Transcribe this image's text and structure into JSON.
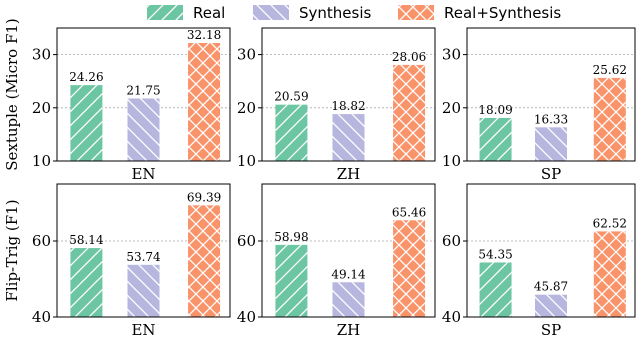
{
  "legend": [
    "Real",
    "Synthesis",
    "Real+Synthesis"
  ],
  "colors": {
    "real": "#6DC6A3",
    "synthesis": "#B6B6DF",
    "realsynth": "#F9936A"
  },
  "chart_data": [
    {
      "type": "bar",
      "row": 0,
      "categories": [
        "Real",
        "Synthesis",
        "Real+Synthesis"
      ],
      "values": [
        24.26,
        21.75,
        32.18
      ],
      "labels": [
        "24.26",
        "21.75",
        "32.18"
      ],
      "xlabel": "EN",
      "ylabel": "Sextuple (Micro F1)",
      "ylim": [
        10,
        35
      ],
      "yticks": [
        10,
        20,
        30
      ],
      "grid": "dashed horizontal at ticks"
    },
    {
      "type": "bar",
      "row": 0,
      "categories": [
        "Real",
        "Synthesis",
        "Real+Synthesis"
      ],
      "values": [
        20.59,
        18.82,
        28.06
      ],
      "labels": [
        "20.59",
        "18.82",
        "28.06"
      ],
      "xlabel": "ZH",
      "ylabel": "",
      "ylim": [
        10,
        35
      ],
      "yticks": [
        10,
        20,
        30
      ],
      "grid": "dashed horizontal at ticks"
    },
    {
      "type": "bar",
      "row": 0,
      "categories": [
        "Real",
        "Synthesis",
        "Real+Synthesis"
      ],
      "values": [
        18.09,
        16.33,
        25.62
      ],
      "labels": [
        "18.09",
        "16.33",
        "25.62"
      ],
      "xlabel": "SP",
      "ylabel": "",
      "ylim": [
        10,
        35
      ],
      "yticks": [
        10,
        20,
        30
      ],
      "grid": "dashed horizontal at ticks"
    },
    {
      "type": "bar",
      "row": 1,
      "categories": [
        "Real",
        "Synthesis",
        "Real+Synthesis"
      ],
      "values": [
        58.14,
        53.74,
        69.39
      ],
      "labels": [
        "58.14",
        "53.74",
        "69.39"
      ],
      "xlabel": "EN",
      "ylabel": "Flip-Trig (F1)",
      "ylim": [
        40,
        75
      ],
      "yticks": [
        40,
        60
      ],
      "grid": "dashed horizontal at ticks"
    },
    {
      "type": "bar",
      "row": 1,
      "categories": [
        "Real",
        "Synthesis",
        "Real+Synthesis"
      ],
      "values": [
        58.98,
        49.14,
        65.46
      ],
      "labels": [
        "58.98",
        "49.14",
        "65.46"
      ],
      "xlabel": "ZH",
      "ylabel": "",
      "ylim": [
        40,
        75
      ],
      "yticks": [
        40,
        60
      ],
      "grid": "dashed horizontal at ticks"
    },
    {
      "type": "bar",
      "row": 1,
      "categories": [
        "Real",
        "Synthesis",
        "Real+Synthesis"
      ],
      "values": [
        54.35,
        45.87,
        62.52
      ],
      "labels": [
        "54.35",
        "45.87",
        "62.52"
      ],
      "xlabel": "SP",
      "ylabel": "",
      "ylim": [
        40,
        75
      ],
      "yticks": [
        40,
        60
      ],
      "grid": "dashed horizontal at ticks"
    }
  ]
}
